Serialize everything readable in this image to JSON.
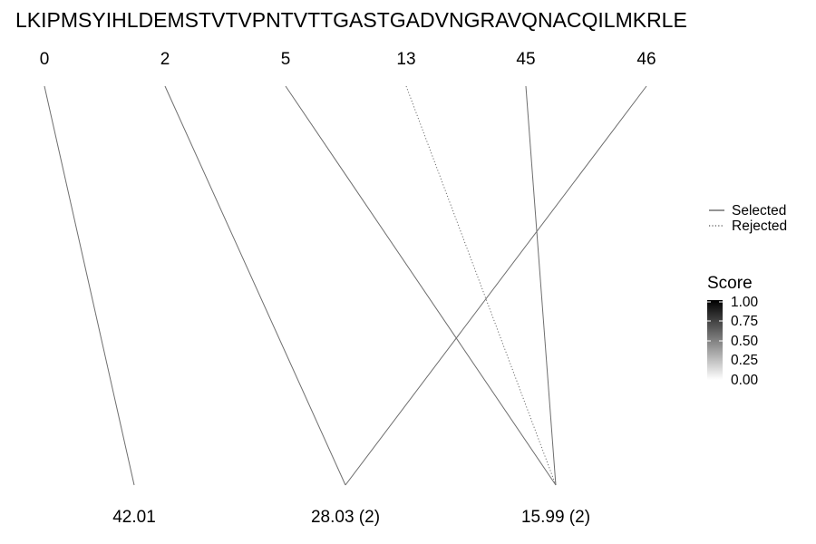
{
  "sequence": "LKIPMSYIHLDEMSTVTVPNTVTTGASTGADVNGRAVQNACQILMKRLE",
  "positions": [
    "0",
    "2",
    "5",
    "13",
    "45",
    "46"
  ],
  "masses": [
    "42.01",
    "28.03 (2)",
    "15.99 (2)"
  ],
  "edges": [
    {
      "from": 0,
      "to": 0,
      "status": "selected",
      "score": 0.55
    },
    {
      "from": 1,
      "to": 1,
      "status": "selected",
      "score": 0.55
    },
    {
      "from": 5,
      "to": 1,
      "status": "selected",
      "score": 0.55
    },
    {
      "from": 2,
      "to": 2,
      "status": "selected",
      "score": 0.55
    },
    {
      "from": 3,
      "to": 2,
      "status": "rejected",
      "score": 0.55
    },
    {
      "from": 4,
      "to": 2,
      "status": "selected",
      "score": 0.55
    }
  ],
  "legend": {
    "linetype": {
      "selected": "Selected",
      "rejected": "Rejected"
    },
    "score": {
      "title": "Score",
      "ticks": [
        "1.00",
        "0.75",
        "0.50",
        "0.25",
        "0.00"
      ]
    }
  },
  "colors": {
    "line": "#6e6e6e",
    "gradient_high": "#000000",
    "gradient_low": "#ffffff"
  }
}
